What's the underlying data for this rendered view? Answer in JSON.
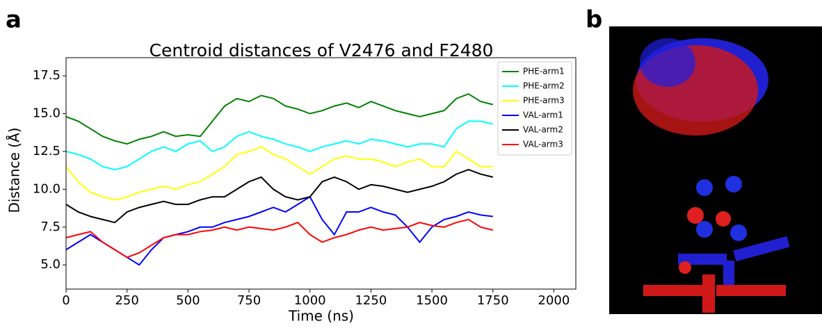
{
  "panel_labels": [
    "a",
    "b"
  ],
  "chart_data": {
    "type": "line",
    "title": "Centroid distances of V2476 and F2480",
    "x_label": "Time (ns)",
    "y_label": "Distance (Å)",
    "x": [
      0,
      50,
      100,
      150,
      200,
      250,
      300,
      350,
      400,
      450,
      500,
      550,
      600,
      650,
      700,
      750,
      800,
      850,
      900,
      950,
      1000,
      1050,
      1100,
      1150,
      1200,
      1250,
      1300,
      1350,
      1400,
      1450,
      1500,
      1550,
      1600,
      1650,
      1700,
      1750
    ],
    "series": [
      {
        "name": "PHE-arm1",
        "color": "#008000",
        "values": [
          14.8,
          14.5,
          14,
          13.5,
          13.2,
          13,
          13.3,
          13.5,
          13.8,
          13.5,
          13.6,
          13.5,
          14.5,
          15.5,
          16,
          15.8,
          16.2,
          16,
          15.5,
          15.3,
          15,
          15.2,
          15.5,
          15.7,
          15.4,
          15.8,
          15.5,
          15.2,
          15,
          14.8,
          15,
          15.2,
          16,
          16.3,
          15.8,
          15.6
        ]
      },
      {
        "name": "PHE-arm2",
        "color": "#00ffff",
        "values": [
          12.5,
          12.3,
          12,
          11.5,
          11.3,
          11.5,
          12,
          12.5,
          12.8,
          12.5,
          13,
          13.2,
          12.5,
          12.8,
          13.5,
          13.8,
          13.5,
          13.3,
          13,
          12.8,
          12.5,
          12.8,
          13,
          13.2,
          13,
          13.3,
          13.2,
          13,
          12.8,
          13,
          13,
          12.8,
          14,
          14.5,
          14.5,
          14.3
        ]
      },
      {
        "name": "PHE-arm3",
        "color": "#ffff00",
        "values": [
          11.5,
          10.5,
          9.8,
          9.5,
          9.3,
          9.5,
          9.8,
          10,
          10.2,
          10,
          10.3,
          10.5,
          11,
          11.5,
          12.3,
          12.5,
          12.8,
          12.3,
          12,
          11.5,
          11,
          11.5,
          12,
          12.2,
          12,
          12,
          11.8,
          11.5,
          11.8,
          12,
          11.5,
          11.5,
          12.5,
          12,
          11.5,
          11.5
        ]
      },
      {
        "name": "VAL-arm1",
        "color": "#0000ff",
        "values": [
          6,
          6.5,
          7,
          6.5,
          6,
          5.5,
          5,
          6,
          6.8,
          7,
          7.2,
          7.5,
          7.5,
          7.8,
          8,
          8.2,
          8.5,
          8.8,
          8.5,
          9,
          9.5,
          8,
          7,
          8.5,
          8.5,
          8.8,
          8.5,
          8.3,
          7.5,
          6.5,
          7.5,
          8,
          8.2,
          8.5,
          8.3,
          8.2
        ]
      },
      {
        "name": "VAL-arm2",
        "color": "#000000",
        "values": [
          9,
          8.5,
          8.2,
          8,
          7.8,
          8.5,
          8.8,
          9,
          9.2,
          9,
          9,
          9.3,
          9.5,
          9.5,
          10,
          10.5,
          10.8,
          10,
          9.5,
          9.3,
          9.5,
          10.5,
          10.8,
          10.5,
          10,
          10.3,
          10.2,
          10,
          9.8,
          10,
          10.2,
          10.5,
          11,
          11.3,
          11,
          10.8
        ]
      },
      {
        "name": "VAL-arm3",
        "color": "#ff0000",
        "values": [
          6.8,
          7,
          7.2,
          6.5,
          6,
          5.5,
          5.8,
          6.3,
          6.8,
          7,
          7,
          7.2,
          7.3,
          7.5,
          7.3,
          7.5,
          7.4,
          7.3,
          7.5,
          7.8,
          7,
          6.5,
          6.8,
          7,
          7.3,
          7.5,
          7.3,
          7.4,
          7.5,
          7.8,
          7.6,
          7.5,
          7.8,
          8,
          7.5,
          7.3
        ]
      }
    ],
    "xlim": [
      0,
      2090
    ],
    "xticks": [
      0,
      250,
      500,
      750,
      1000,
      1250,
      1500,
      1750,
      2000
    ],
    "ylim": [
      3.4,
      18.7
    ],
    "yticks": [
      {
        "value": 5,
        "label": "5.0"
      },
      {
        "value": 7.5,
        "label": "7.5"
      },
      {
        "value": 10,
        "label": "10.0"
      },
      {
        "value": 12.5,
        "label": "12.5"
      },
      {
        "value": 15,
        "label": "15.0"
      },
      {
        "value": 17.5,
        "label": "17.5"
      }
    ],
    "legend": "upper right"
  }
}
